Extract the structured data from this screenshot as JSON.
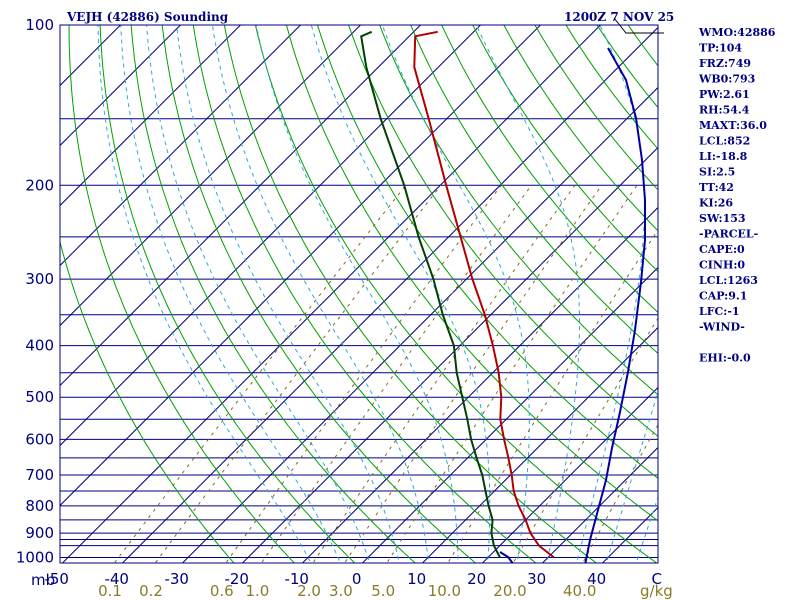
{
  "chart_data": {
    "type": "skew-t",
    "title": "VEJH (42886) Sounding",
    "time": "1200Z  7 NOV 25",
    "pressure_unit": "mb",
    "pressure_ticks": [
      100,
      200,
      300,
      400,
      500,
      600,
      700,
      800,
      900,
      1000
    ],
    "pressure_lines": [
      100,
      150,
      200,
      250,
      300,
      350,
      400,
      450,
      500,
      550,
      600,
      650,
      700,
      750,
      800,
      850,
      900,
      925,
      950,
      1000,
      1050
    ],
    "ylim": [
      1050,
      100
    ],
    "xlim": [
      -50,
      50
    ],
    "temperature_ticks": [
      "-50",
      "-40",
      "-30",
      "-20",
      "-10",
      "0",
      "10",
      "20",
      "30",
      "40",
      "C"
    ],
    "isotherms_degC": [
      -160,
      -150,
      -140,
      -130,
      -120,
      -110,
      -100,
      -90,
      -80,
      -70,
      -60,
      -50,
      -40,
      -30,
      -20,
      -10,
      0,
      10,
      20,
      30,
      40,
      50
    ],
    "dry_adiabats_K": [
      250,
      260,
      270,
      280,
      290,
      300,
      310,
      320,
      330,
      340,
      350,
      360,
      370,
      380,
      390,
      400,
      410,
      420,
      430,
      440,
      450,
      460,
      470,
      480,
      490,
      500,
      510,
      520
    ],
    "moist_adiabats_degC": [
      -10,
      -5,
      0,
      5,
      10,
      15,
      20,
      25,
      30,
      35,
      40,
      45
    ],
    "mixing_ratio_lines": [
      {
        "label": "0.1",
        "value": 0.1
      },
      {
        "label": "0.2",
        "value": 0.2
      },
      {
        "label": "0.6",
        "value": 0.6
      },
      {
        "label": "1.0",
        "value": 1.0
      },
      {
        "label": "2.0",
        "value": 2.0
      },
      {
        "label": "3.0",
        "value": 3.0
      },
      {
        "label": "5.0",
        "value": 5.0
      },
      {
        "label": "10.0",
        "value": 10.0
      },
      {
        "label": "20.0",
        "value": 20.0
      },
      {
        "label": "40.0",
        "value": 40.0
      }
    ],
    "mixing_ratio_unit": "g/kg",
    "series": [
      {
        "name": "temperature",
        "color": "#b00000",
        "points": [
          [
            1000,
            31
          ],
          [
            950,
            26.5
          ],
          [
            900,
            23
          ],
          [
            850,
            20
          ],
          [
            800,
            16.5
          ],
          [
            750,
            13.2
          ],
          [
            700,
            10.2
          ],
          [
            650,
            6.8
          ],
          [
            600,
            3
          ],
          [
            550,
            -1
          ],
          [
            500,
            -4.5
          ],
          [
            450,
            -9
          ],
          [
            400,
            -14.5
          ],
          [
            350,
            -21
          ],
          [
            300,
            -29
          ],
          [
            250,
            -38
          ],
          [
            200,
            -49
          ],
          [
            150,
            -63
          ],
          [
            120,
            -74
          ],
          [
            105,
            -79
          ],
          [
            103,
            -76
          ]
        ]
      },
      {
        "name": "dewpoint",
        "color": "#004000",
        "points": [
          [
            1000,
            22
          ],
          [
            950,
            19
          ],
          [
            900,
            16.5
          ],
          [
            850,
            14.5
          ],
          [
            800,
            11.5
          ],
          [
            750,
            8.5
          ],
          [
            700,
            5.3
          ],
          [
            650,
            1.5
          ],
          [
            600,
            -2.5
          ],
          [
            550,
            -6.5
          ],
          [
            500,
            -11
          ],
          [
            450,
            -16
          ],
          [
            400,
            -21
          ],
          [
            350,
            -28
          ],
          [
            300,
            -35.5
          ],
          [
            250,
            -45
          ],
          [
            200,
            -56
          ],
          [
            150,
            -71
          ],
          [
            120,
            -82
          ],
          [
            105,
            -88
          ],
          [
            103,
            -87
          ]
        ]
      }
    ],
    "wind_profile_color": "#0000a0",
    "parcel_segment_color": "#0000a0"
  },
  "indices": [
    "WMO:42886",
    "TP:104",
    "FRZ:749",
    "WB0:793",
    "PW:2.61",
    "RH:54.4",
    "MAXT:36.0",
    "LCL:852",
    "LI:-18.8",
    "SI:2.5",
    "TT:42",
    "KI:26",
    "SW:153",
    "-PARCEL-",
    "CAPE:0",
    "CINH:0",
    "LCL:1263",
    "CAP:9.1",
    "LFC:-1",
    "-WIND-",
    "",
    "EHI:-0.0"
  ],
  "colors": {
    "frame": "#000080",
    "isotherm": "#000080",
    "isobar": "#000080",
    "dry_adiabat": "#00a000",
    "moist_adiabat": "#30a8d8",
    "mixing_ratio": "#806a20"
  }
}
